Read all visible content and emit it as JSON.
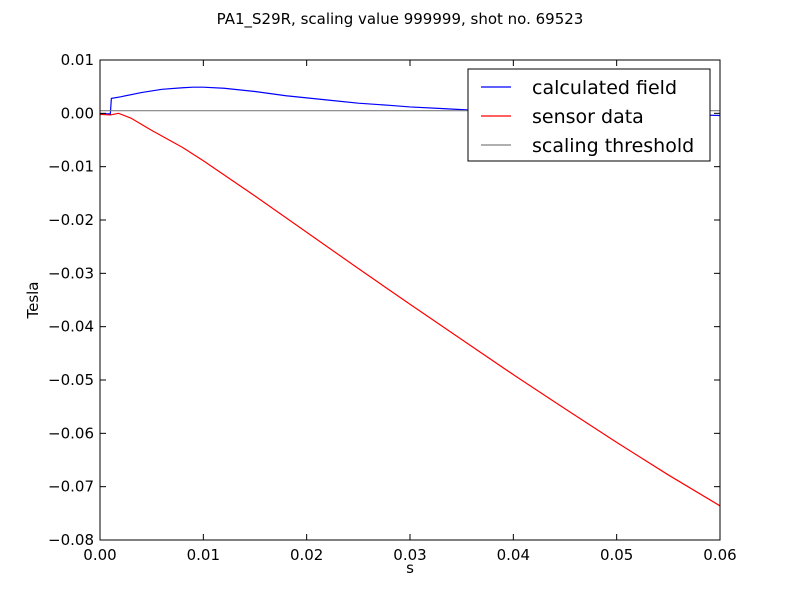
{
  "chart_data": {
    "type": "line",
    "title": "PA1_S29R, scaling value 999999, shot no. 69523",
    "xlabel": "s",
    "ylabel": "Tesla",
    "xlim": [
      0.0,
      0.06
    ],
    "ylim": [
      -0.08,
      0.01
    ],
    "xticks": [
      "0.00",
      "0.01",
      "0.02",
      "0.03",
      "0.04",
      "0.05",
      "0.06"
    ],
    "xtick_values": [
      0.0,
      0.01,
      0.02,
      0.03,
      0.04,
      0.05,
      0.06
    ],
    "yticks": [
      "0.01",
      "0.00",
      "−0.01",
      "−0.02",
      "−0.03",
      "−0.04",
      "−0.05",
      "−0.06",
      "−0.07",
      "−0.08"
    ],
    "ytick_values": [
      0.01,
      0.0,
      -0.01,
      -0.02,
      -0.03,
      -0.04,
      -0.05,
      -0.06,
      -0.07,
      -0.08
    ],
    "grid": false,
    "legend_position": "top-right",
    "series": [
      {
        "name": "calculated field",
        "color": "#0000ff",
        "x": [
          0.0,
          0.0008,
          0.001,
          0.0011,
          0.002,
          0.004,
          0.006,
          0.008,
          0.009,
          0.01,
          0.012,
          0.015,
          0.018,
          0.02,
          0.022,
          0.025,
          0.028,
          0.03,
          0.033,
          0.035,
          0.038,
          0.04,
          0.045,
          0.05,
          0.055,
          0.058,
          0.06
        ],
        "y": [
          -0.0001,
          -0.0001,
          -0.0001,
          0.0028,
          0.0031,
          0.0039,
          0.0045,
          0.0048,
          0.0049,
          0.0049,
          0.0047,
          0.0041,
          0.0033,
          0.0029,
          0.0025,
          0.0019,
          0.0015,
          0.0012,
          0.0009,
          0.0007,
          0.0004,
          0.0003,
          0.0001,
          0.0,
          -0.0002,
          -0.0003,
          -0.0004
        ]
      },
      {
        "name": "sensor data",
        "color": "#ff0000",
        "x": [
          0.0,
          0.001,
          0.0018,
          0.003,
          0.005,
          0.008,
          0.01,
          0.015,
          0.02,
          0.025,
          0.03,
          0.035,
          0.04,
          0.045,
          0.05,
          0.055,
          0.06
        ],
        "y": [
          -0.0002,
          -0.0003,
          0.0,
          -0.0009,
          -0.0032,
          -0.0064,
          -0.0089,
          -0.0155,
          -0.0223,
          -0.0291,
          -0.0358,
          -0.0424,
          -0.049,
          -0.0554,
          -0.0617,
          -0.0678,
          -0.0736
        ]
      },
      {
        "name": "scaling threshold",
        "color": "#808080",
        "x": [
          0.0,
          0.06
        ],
        "y": [
          0.0005,
          0.0005
        ]
      }
    ]
  }
}
